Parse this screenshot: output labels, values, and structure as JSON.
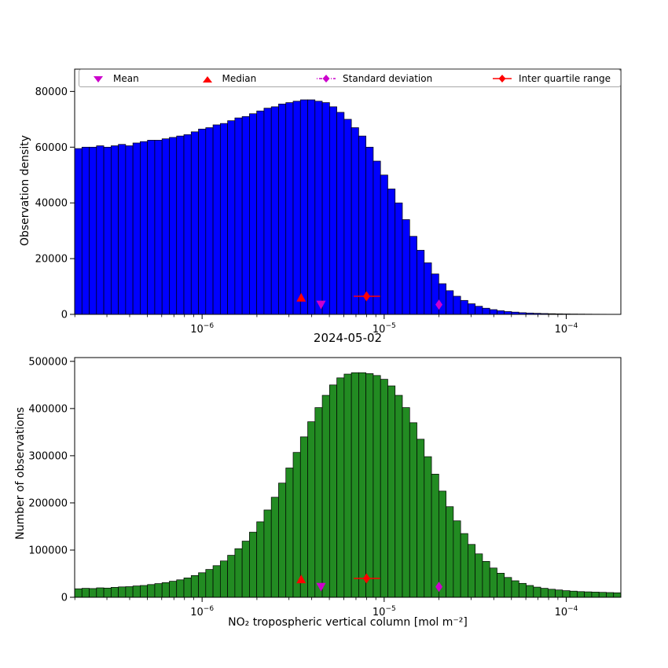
{
  "figure": {
    "title": "2024-05-02",
    "xlabel": "NO₂ tropospheric vertical column [mol m⁻²]"
  },
  "legend": {
    "items": [
      {
        "label": "Mean",
        "marker": "triangle-down",
        "color": "#cc00cc"
      },
      {
        "label": "Median",
        "marker": "triangle-up",
        "color": "#ff0000"
      },
      {
        "label": "Standard deviation",
        "marker": "diamond",
        "line": "dashdot",
        "color": "#cc00cc"
      },
      {
        "label": "Inter quartile range",
        "marker": "diamond",
        "line": "solid",
        "color": "#ff0000"
      }
    ]
  },
  "chart_data": [
    {
      "type": "bar",
      "subtype": "histogram",
      "panel": "top",
      "ylabel": "Observation density",
      "bar_color": "#0000ff",
      "edge_color": "#000000",
      "x_scale": "log",
      "x_range": [
        2e-07,
        0.0002
      ],
      "bins_log10_start": -6.7,
      "bins_log10_step": 0.04,
      "ylim": [
        0,
        88000
      ],
      "yticks": [
        0,
        20000,
        40000,
        60000,
        80000
      ],
      "xticks": [
        1e-06,
        1e-05,
        0.0001
      ],
      "grid": false,
      "legend_position": "upper center expanded",
      "values": [
        59500,
        60000,
        60000,
        60500,
        60000,
        60500,
        61000,
        60500,
        61500,
        62000,
        62500,
        62500,
        63000,
        63500,
        64000,
        64500,
        65500,
        66500,
        67000,
        68000,
        68500,
        69500,
        70500,
        71000,
        72000,
        73000,
        74000,
        74500,
        75500,
        76000,
        76500,
        77000,
        77000,
        76500,
        76000,
        74500,
        72500,
        70000,
        67000,
        64000,
        60000,
        55000,
        50000,
        45000,
        40000,
        34000,
        28000,
        23000,
        18500,
        14500,
        11000,
        8500,
        6500,
        5000,
        3800,
        2900,
        2200,
        1700,
        1300,
        1000,
        800,
        600,
        480,
        380,
        300,
        240,
        190,
        150,
        120,
        100,
        80,
        60,
        50,
        40,
        30
      ],
      "markers": [
        {
          "name": "median",
          "shape": "triangle-up",
          "color": "#ff0000",
          "x": 3.5e-06,
          "y": 6000
        },
        {
          "name": "mean",
          "shape": "triangle-down",
          "color": "#cc00cc",
          "x": 4.5e-06,
          "y": 3500
        },
        {
          "name": "inter-quartile-range",
          "shape": "diamond",
          "color": "#ff0000",
          "x": 8e-06,
          "y": 6500,
          "xerr": [
            6.8e-06,
            9.5e-06
          ]
        },
        {
          "name": "standard-deviation",
          "shape": "diamond",
          "color": "#cc00cc",
          "x": 2e-05,
          "y": 3500
        }
      ]
    },
    {
      "type": "bar",
      "subtype": "histogram",
      "panel": "bottom",
      "ylabel": "Number of observations",
      "bar_color": "#228B22",
      "edge_color": "#000000",
      "x_scale": "log",
      "x_range": [
        2e-07,
        0.0002
      ],
      "bins_log10_start": -6.7,
      "bins_log10_step": 0.04,
      "ylim": [
        0,
        508000
      ],
      "yticks": [
        0,
        100000,
        200000,
        300000,
        400000,
        500000
      ],
      "xticks": [
        1e-06,
        1e-05,
        0.0001
      ],
      "grid": false,
      "values": [
        18000,
        19000,
        18500,
        20000,
        19500,
        21000,
        22000,
        22500,
        24000,
        25000,
        27000,
        29000,
        31000,
        34000,
        37000,
        41000,
        46000,
        52000,
        59000,
        67000,
        77000,
        89000,
        103000,
        119000,
        138000,
        160000,
        185000,
        212000,
        242000,
        274000,
        307000,
        340000,
        372000,
        402000,
        428000,
        450000,
        465000,
        473000,
        476000,
        476000,
        474000,
        470000,
        462000,
        448000,
        428000,
        402000,
        370000,
        335000,
        298000,
        261000,
        225000,
        192000,
        162000,
        135000,
        112000,
        92000,
        76000,
        62000,
        51000,
        42000,
        35000,
        29500,
        25000,
        21500,
        19000,
        17000,
        15500,
        14000,
        13000,
        12000,
        11500,
        11000,
        10500,
        10000,
        9500
      ],
      "markers": [
        {
          "name": "median",
          "shape": "triangle-up",
          "color": "#ff0000",
          "x": 3.5e-06,
          "y": 38000
        },
        {
          "name": "mean",
          "shape": "triangle-down",
          "color": "#cc00cc",
          "x": 4.5e-06,
          "y": 22000
        },
        {
          "name": "inter-quartile-range",
          "shape": "diamond",
          "color": "#ff0000",
          "x": 8e-06,
          "y": 40000,
          "xerr": [
            6.8e-06,
            9.5e-06
          ]
        },
        {
          "name": "standard-deviation",
          "shape": "diamond",
          "color": "#cc00cc",
          "x": 2e-05,
          "y": 22000
        }
      ]
    }
  ]
}
